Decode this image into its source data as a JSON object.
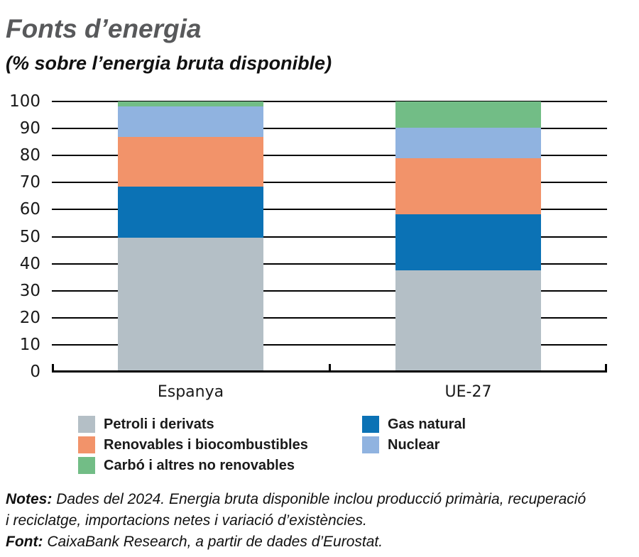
{
  "page": {
    "title": "Fonts d’energia",
    "subtitle": "(% sobre l’energia bruta disponible)"
  },
  "colors": {
    "title_gray": "#58595b",
    "text_black": "#1a1a1a",
    "axis_line": "#000000",
    "background": "#ffffff"
  },
  "chart_data": {
    "type": "bar",
    "stacked": true,
    "title": "Fonts d’energia",
    "subtitle": "(% sobre l’energia bruta disponible)",
    "categories": [
      "Espanya",
      "UE-27"
    ],
    "series": [
      {
        "name": "Petroli i derivats",
        "color": "#b4bfc6",
        "values": [
          49.7,
          37.6
        ]
      },
      {
        "name": "Gas natural",
        "color": "#0b72b5",
        "values": [
          18.9,
          20.7
        ]
      },
      {
        "name": "Renovables i biocombustibles",
        "color": "#f2936a",
        "values": [
          18.4,
          20.7
        ]
      },
      {
        "name": "Nuclear",
        "color": "#90b3e0",
        "values": [
          11.2,
          11.2
        ]
      },
      {
        "name": "Carbó i altres no renovables",
        "color": "#72bd86",
        "values": [
          1.8,
          9.8
        ]
      }
    ],
    "xlabel": "",
    "ylabel": "",
    "ylim": [
      0,
      100
    ],
    "yticks": [
      0,
      10,
      20,
      30,
      40,
      50,
      60,
      70,
      80,
      90,
      100
    ],
    "grid": true,
    "legend_position": "bottom"
  },
  "legend": {
    "columns": [
      [
        0,
        2,
        4
      ],
      [
        1,
        3
      ]
    ]
  },
  "notes": {
    "label": "Notes:",
    "line1": "Dades del 2024. Energia bruta disponible inclou producció primària, recuperació",
    "line2": "i reciclatge, importacions netes i variació d’existències.",
    "source_label": "Font:",
    "source_text": "CaixaBank Research, a partir de dades d’Eurostat."
  }
}
